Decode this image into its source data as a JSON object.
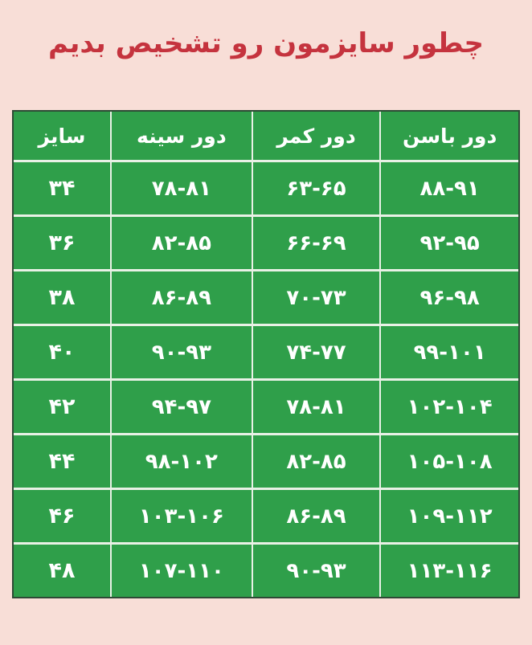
{
  "page": {
    "background": "#f8ded7"
  },
  "title": {
    "text": "چطور سایزمون رو تشخیص بدیم",
    "color": "#c5333e"
  },
  "table": {
    "style": {
      "cell_green": "#2f9f4a",
      "outer_border": "#2e4a35",
      "grid_line": "#e9f1e6",
      "text_color": "#ffffff"
    },
    "columns": [
      "سایز",
      "دور سینه",
      "دور کمر",
      "دور باسن"
    ],
    "rows": [
      [
        "۳۴",
        "۷۸-۸۱",
        "۶۳-۶۵",
        "۸۸-۹۱"
      ],
      [
        "۳۶",
        "۸۲-۸۵",
        "۶۶-۶۹",
        "۹۲-۹۵"
      ],
      [
        "۳۸",
        "۸۶-۸۹",
        "۷۰-۷۳",
        "۹۶-۹۸"
      ],
      [
        "۴۰",
        "۹۰-۹۳",
        "۷۴-۷۷",
        "۹۹-۱۰۱"
      ],
      [
        "۴۲",
        "۹۴-۹۷",
        "۷۸-۸۱",
        "۱۰۲-۱۰۴"
      ],
      [
        "۴۴",
        "۹۸-۱۰۲",
        "۸۲-۸۵",
        "۱۰۵-۱۰۸"
      ],
      [
        "۴۶",
        "۱۰۳-۱۰۶",
        "۸۶-۸۹",
        "۱۰۹-۱۱۲"
      ],
      [
        "۴۸",
        "۱۰۷-۱۱۰",
        "۹۰-۹۳",
        "۱۱۳-۱۱۶"
      ]
    ]
  }
}
